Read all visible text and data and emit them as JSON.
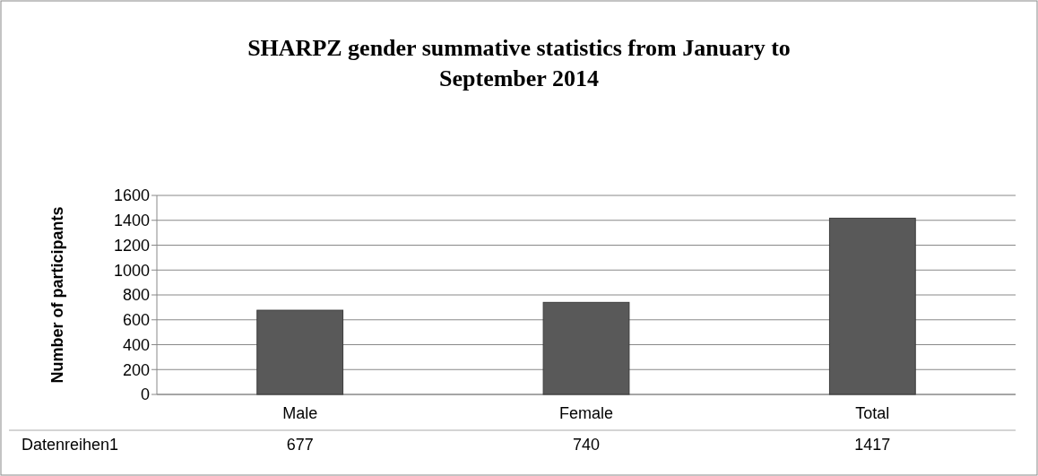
{
  "chart_data": {
    "type": "bar",
    "title": "SHARPZ gender summative statistics from January to September 2014",
    "ylabel": "Number of participants",
    "categories": [
      "Male",
      "Female",
      "Total"
    ],
    "series": [
      {
        "name": "Datenreihen1",
        "color": "#595959",
        "values": [
          677,
          740,
          1417
        ]
      }
    ],
    "ylim": [
      0,
      1600
    ],
    "yticks": [
      0,
      200,
      400,
      600,
      800,
      1000,
      1200,
      1400,
      1600
    ],
    "grid": "y",
    "data_labels": true
  }
}
